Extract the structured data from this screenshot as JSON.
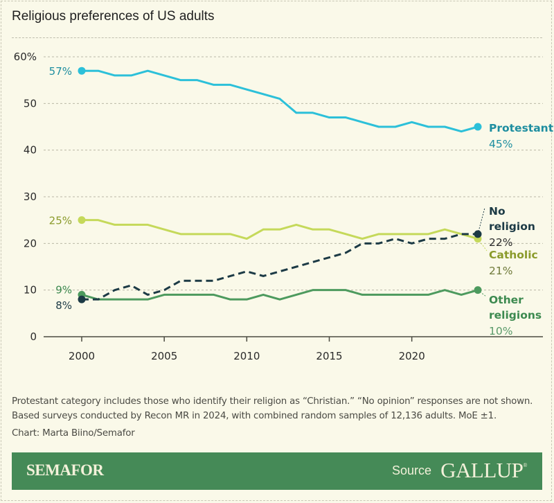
{
  "chart_data": {
    "type": "line",
    "title": "Religious preferences of US adults",
    "xlabel": "",
    "ylabel": "",
    "x": [
      2000,
      2001,
      2002,
      2003,
      2004,
      2005,
      2006,
      2007,
      2008,
      2009,
      2010,
      2011,
      2012,
      2013,
      2014,
      2015,
      2016,
      2017,
      2018,
      2019,
      2020,
      2021,
      2022,
      2023,
      2024
    ],
    "xticks": [
      "2000",
      "2005",
      "2010",
      "2015",
      "2020"
    ],
    "xtick_values": [
      2000,
      2005,
      2010,
      2015,
      2020
    ],
    "yticks": [
      "60%",
      "50",
      "40",
      "30",
      "20",
      "10",
      "0"
    ],
    "ytick_values": [
      60,
      50,
      40,
      30,
      20,
      10,
      0
    ],
    "ylim": [
      0,
      60
    ],
    "xlim": [
      2000,
      2024
    ],
    "grid": true,
    "series": [
      {
        "name": "Protestant",
        "color": "#2cc0d9",
        "label_color": "#1e8ea0",
        "style": "solid",
        "values": [
          57,
          57,
          56,
          56,
          57,
          56,
          55,
          55,
          54,
          54,
          53,
          52,
          51,
          48,
          48,
          47,
          47,
          46,
          45,
          45,
          46,
          45,
          45,
          44,
          45
        ],
        "start_label": "57%",
        "end_name": "Protestant",
        "end_value": "45%"
      },
      {
        "name": "Catholic",
        "color": "#c5d95a",
        "label_color": "#8a9a2a",
        "style": "solid",
        "values": [
          25,
          25,
          24,
          24,
          24,
          23,
          22,
          22,
          22,
          22,
          21,
          23,
          23,
          24,
          23,
          23,
          22,
          21,
          22,
          22,
          22,
          22,
          23,
          22,
          21
        ],
        "start_label": "25%",
        "end_name": "Catholic",
        "end_value": "21%"
      },
      {
        "name": "No religion",
        "color": "#1c3a45",
        "label_color": "#1c3a45",
        "style": "dashed",
        "values": [
          8,
          8,
          10,
          11,
          9,
          10,
          12,
          12,
          12,
          13,
          14,
          13,
          14,
          15,
          16,
          17,
          18,
          20,
          20,
          21,
          20,
          21,
          21,
          22,
          22
        ],
        "start_label": "8%",
        "end_name": "No religion",
        "end_value": "22%"
      },
      {
        "name": "Other religions",
        "color": "#4d9a5e",
        "label_color": "#3d8a50",
        "style": "solid",
        "values": [
          9,
          8,
          8,
          8,
          8,
          9,
          9,
          9,
          9,
          8,
          8,
          9,
          8,
          9,
          10,
          10,
          10,
          9,
          9,
          9,
          9,
          9,
          10,
          9,
          10
        ],
        "start_label": "9%",
        "end_name": "Other religions",
        "end_value": "10%"
      }
    ]
  },
  "note": "Protestant category includes those who identify their religion as “Christian.” “No opinion” responses are not shown. Based surveys conducted by Recon MR in 2024, with combined random samples of 12,136 adults. MoE ±1.",
  "credit": "Chart: Marta Biino/Semafor",
  "footer": {
    "brand": "SEMAFOR",
    "source_label": "Source",
    "source_name": "GALLUP",
    "reg_mark": "®",
    "background": "#458a57"
  }
}
